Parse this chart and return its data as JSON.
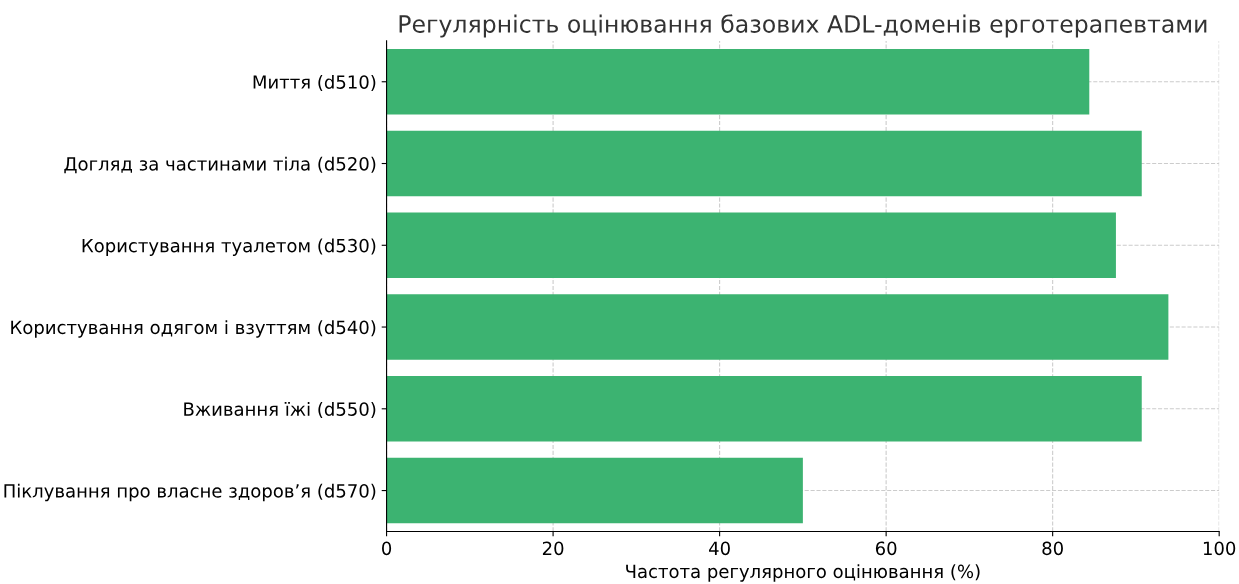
{
  "chart_data": {
    "type": "bar",
    "orientation": "horizontal",
    "title": "Регулярність оцінювання базових ADL-доменів ерготерапевтами",
    "xlabel": "Частота регулярного оцінювання (%)",
    "categories": [
      "Миття (d510)",
      "Догляд за частинами тіла (d520)",
      "Користування туалетом (d530)",
      "Користування одягом і взуттям (d540)",
      "Вживання їжі (d550)",
      "Піклування про власне здоров’я (d570)"
    ],
    "values": [
      84.4,
      90.7,
      87.6,
      93.9,
      90.7,
      50.0
    ],
    "color": "#3cb371",
    "xlim": [
      0,
      100
    ],
    "xticks": [
      0,
      20,
      40,
      60,
      80,
      100
    ],
    "grid": true
  }
}
